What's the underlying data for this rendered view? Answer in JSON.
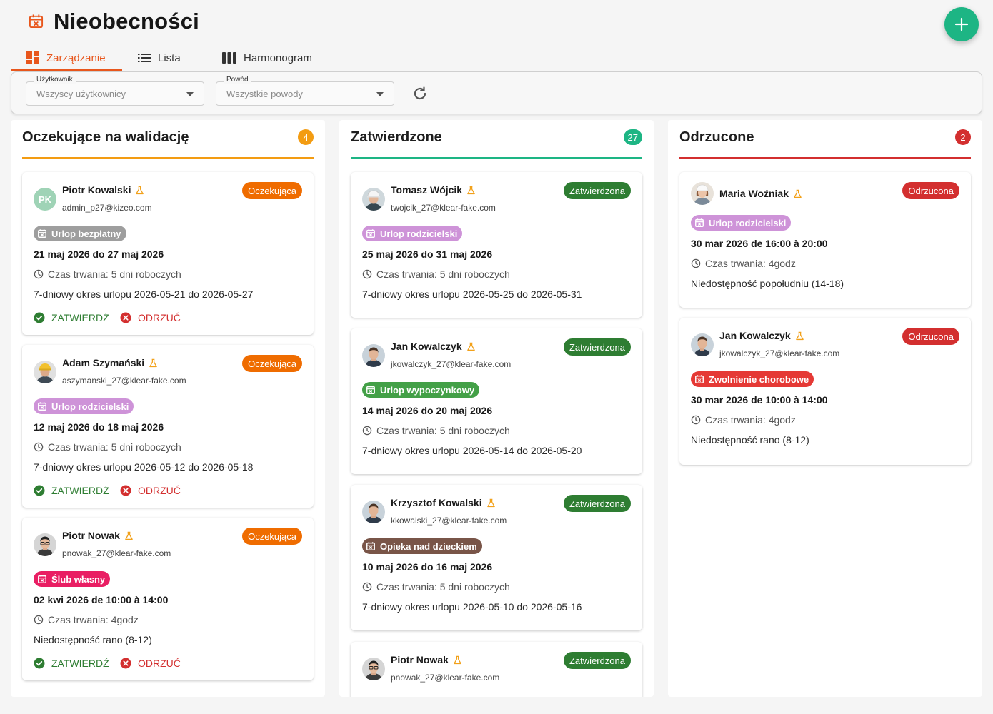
{
  "page": {
    "title": "Nieobecności"
  },
  "tabs": [
    {
      "label": "Zarządzanie"
    },
    {
      "label": "Lista"
    },
    {
      "label": "Harmonogram"
    }
  ],
  "filters": {
    "user": {
      "label": "Użytkownik",
      "value": "Wszyscy użytkownicy"
    },
    "reason": {
      "label": "Powód",
      "value": "Wszystkie powody"
    }
  },
  "actions": {
    "approve": "ZATWIERDŹ",
    "reject": "ODRZUĆ"
  },
  "colors": {
    "accent": "#e8561c",
    "pending": "#f39c12",
    "approved": "#1db584",
    "rejected": "#d32f2f"
  },
  "columns": [
    {
      "title": "Oczekujące na walidację",
      "count": "4",
      "cards": [
        {
          "name": "Piotr Kowalski",
          "initials": "PK",
          "email": "admin_p27@kizeo.com",
          "status": "Oczekująca",
          "reason": "Urlop bezpłatny",
          "reason_color": "#9e9e9e",
          "dates": "21 maj 2026 do 27 maj 2026",
          "duration": "Czas trwania: 5 dni roboczych",
          "desc": "7-dniowy okres urlopu 2026-05-21 do 2026-05-27"
        },
        {
          "name": "Adam Szymański",
          "email": "aszymanski_27@klear-fake.com",
          "status": "Oczekująca",
          "reason": "Urlop rodzicielski",
          "reason_color": "#ce93d8",
          "dates": "12 maj 2026 do 18 maj 2026",
          "duration": "Czas trwania: 5 dni roboczych",
          "desc": "7-dniowy okres urlopu 2026-05-12 do 2026-05-18"
        },
        {
          "name": "Piotr Nowak",
          "email": "pnowak_27@klear-fake.com",
          "status": "Oczekująca",
          "reason": "Ślub własny",
          "reason_color": "#e91e63",
          "dates": "02 kwi 2026 de 10:00 à 14:00",
          "duration": "Czas trwania: 4godz",
          "desc": "Niedostępność rano (8-12)"
        }
      ]
    },
    {
      "title": "Zatwierdzone",
      "count": "27",
      "cards": [
        {
          "name": "Tomasz Wójcik",
          "email": "twojcik_27@klear-fake.com",
          "status": "Zatwierdzona",
          "reason": "Urlop rodzicielski",
          "reason_color": "#ce93d8",
          "dates": "25 maj 2026 do 31 maj 2026",
          "duration": "Czas trwania: 5 dni roboczych",
          "desc": "7-dniowy okres urlopu 2026-05-25 do 2026-05-31"
        },
        {
          "name": "Jan Kowalczyk",
          "email": "jkowalczyk_27@klear-fake.com",
          "status": "Zatwierdzona",
          "reason": "Urlop wypoczynkowy",
          "reason_color": "#43a047",
          "dates": "14 maj 2026 do 20 maj 2026",
          "duration": "Czas trwania: 5 dni roboczych",
          "desc": "7-dniowy okres urlopu 2026-05-14 do 2026-05-20"
        },
        {
          "name": "Krzysztof Kowalski",
          "email": "kkowalski_27@klear-fake.com",
          "status": "Zatwierdzona",
          "reason": "Opieka nad dzieckiem",
          "reason_color": "#795548",
          "dates": "10 maj 2026 do 16 maj 2026",
          "duration": "Czas trwania: 5 dni roboczych",
          "desc": "7-dniowy okres urlopu 2026-05-10 do 2026-05-16"
        },
        {
          "name": "Piotr Nowak",
          "email": "pnowak_27@klear-fake.com",
          "status": "Zatwierdzona"
        }
      ]
    },
    {
      "title": "Odrzucone",
      "count": "2",
      "cards": [
        {
          "name": "Maria Woźniak",
          "status": "Odrzucona",
          "reason": "Urlop rodzicielski",
          "reason_color": "#ce93d8",
          "dates": "30 mar 2026 de 16:00 à 20:00",
          "duration": "Czas trwania: 4godz",
          "desc": "Niedostępność popołudniu (14-18)"
        },
        {
          "name": "Jan Kowalczyk",
          "email": "jkowalczyk_27@klear-fake.com",
          "status": "Odrzucona",
          "reason": "Zwolnienie chorobowe",
          "reason_color": "#e53935",
          "dates": "30 mar 2026 de 10:00 à 14:00",
          "duration": "Czas trwania: 4godz",
          "desc": "Niedostępność rano (8-12)"
        }
      ]
    }
  ]
}
